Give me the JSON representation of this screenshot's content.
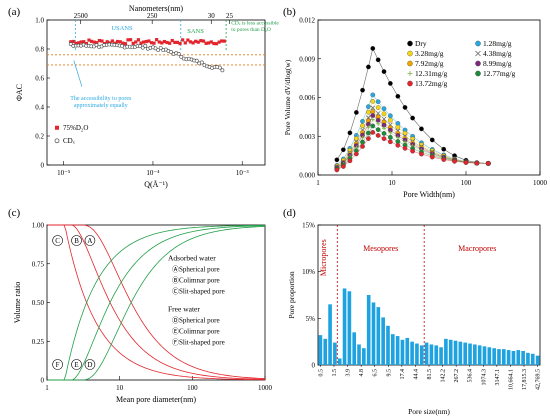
{
  "colors": {
    "red": "#e3262e",
    "green": "#22a04a",
    "cyan": "#29a9e0",
    "blue": "#1ea2e0",
    "darkred": "#c00000"
  },
  "chart_data": [
    {
      "panel": "(a)",
      "type": "scatter",
      "xlabel": "Q(Å⁻¹)",
      "ylabel": "ΦAC",
      "top_xlabel": "Nanometers(nm)",
      "xscale": "log",
      "xlim": [
        6.5e-06,
        0.0018
      ],
      "ylim": [
        0,
        1.0
      ],
      "x_ticks": [
        "10⁻⁵",
        "10⁻⁴",
        "10⁻³"
      ],
      "y_ticks": [
        "0",
        "0.2",
        "0.4",
        "0.6",
        "0.8",
        "1.0"
      ],
      "top_ticks": [
        "2500",
        "250",
        "30",
        "25"
      ],
      "annotations": [
        "USANS",
        "SANS",
        "CDₓ is less accessible to pores than D₂O",
        "The accessibility to pores approximately equally"
      ],
      "legend": [
        "75%D₂O",
        "CDₓ"
      ],
      "series": [
        {
          "name": "75%D₂O",
          "marker": "filled-square",
          "x_range": [
            1.2e-05,
            0.00063
          ],
          "y_mean": 0.85,
          "y_noise": 0.015
        },
        {
          "name": "CDₓ",
          "marker": "open-circle",
          "x": [
            1.2e-05,
            5e-05,
            0.0001,
            0.00016,
            0.00025,
            0.0004,
            0.0006
          ],
          "y": [
            0.825,
            0.82,
            0.81,
            0.78,
            0.73,
            0.69,
            0.66
          ]
        }
      ],
      "reference_lines": [
        0.76,
        0.69
      ]
    },
    {
      "panel": "(b)",
      "type": "line",
      "xlabel": "Pore Width(nm)",
      "ylabel": "Pore Volume dV/dlog(w)",
      "xscale": "log",
      "xlim": [
        1,
        1000
      ],
      "ylim": [
        0,
        0.012
      ],
      "x_ticks": [
        "1",
        "10",
        "100",
        "1000"
      ],
      "y_ticks": [
        "0.000",
        "0.003",
        "0.006",
        "0.009",
        "0.012"
      ],
      "legend": [
        "Dry",
        "1.28mg/g",
        "3.28mg/g",
        "4.38mg/g",
        "7.92mg/g",
        "8.99mg/g",
        "12.31mg/g",
        "12.77mg/g",
        "13.72mg/g"
      ],
      "peak_x": 5.5,
      "series": [
        {
          "name": "Dry",
          "peak": 0.0098
        },
        {
          "name": "1.28mg/g",
          "peak": 0.0062
        },
        {
          "name": "3.28mg/g",
          "peak": 0.0057
        },
        {
          "name": "4.38mg/g",
          "peak": 0.0052
        },
        {
          "name": "7.92mg/g",
          "peak": 0.0049
        },
        {
          "name": "8.99mg/g",
          "peak": 0.0046
        },
        {
          "name": "12.31mg/g",
          "peak": 0.0043
        },
        {
          "name": "12.77mg/g",
          "peak": 0.0038
        },
        {
          "name": "13.72mg/g",
          "peak": 0.0033
        }
      ],
      "tail_value": 0.0009
    },
    {
      "panel": "(c)",
      "type": "line",
      "xlabel": "Mean pore diameter(nm)",
      "ylabel": "Volume ratio",
      "xscale": "log",
      "xlim": [
        1,
        1000
      ],
      "ylim": [
        0,
        1.0
      ],
      "x_ticks": [
        "1",
        "10",
        "100",
        "1000"
      ],
      "y_ticks": [
        "0",
        "0.25",
        "0.50",
        "0.75",
        "1.00"
      ],
      "legend_groups": [
        {
          "title": "Adsorbed water",
          "items": [
            "ⒶSpherical pore",
            "ⒷColimnar pore",
            "ⒸSlit-shaped pore"
          ]
        },
        {
          "title": "Free water",
          "items": [
            "ⒹSpherical pore",
            "ⒺColimnar pore",
            "ⒻSlit-shaped pore"
          ]
        }
      ],
      "curve_labels": [
        "C",
        "B",
        "A",
        "F",
        "E",
        "D"
      ],
      "series": [
        {
          "name": "Ⓐ",
          "color": "red",
          "x0": 1.95,
          "scale": 1,
          "power": 1,
          "kind": "adsorbed"
        },
        {
          "name": "Ⓑ",
          "color": "red",
          "x0": 2.4,
          "scale": 1,
          "power": 2,
          "kind": "adsorbed"
        },
        {
          "name": "Ⓒ",
          "color": "red",
          "x0": 3.3,
          "scale": 1,
          "power": 3,
          "kind": "adsorbed"
        },
        {
          "name": "Ⓓ",
          "color": "green",
          "x0": 1.95,
          "power": 1,
          "kind": "free"
        },
        {
          "name": "Ⓔ",
          "color": "green",
          "x0": 2.4,
          "power": 2,
          "kind": "free"
        },
        {
          "name": "Ⓕ",
          "color": "green",
          "x0": 3.3,
          "power": 3,
          "kind": "free"
        }
      ]
    },
    {
      "panel": "(d)",
      "type": "bar",
      "xlabel": "Pore size(nm)",
      "ylabel": "Pore proportion",
      "ylim": [
        0,
        0.15
      ],
      "y_ticks": [
        "0",
        "5%",
        "10%",
        "15%"
      ],
      "region_labels": [
        "Micropores",
        "Mesopores",
        "Macropores"
      ],
      "category_ticks": [
        "0.5",
        "1.5",
        "3.9",
        "4.8",
        "6.5",
        "9.5",
        "17.4",
        "44.4",
        "81.5",
        "142.2",
        "267.2",
        "536.4",
        "1074.3",
        "3147.1",
        "10,664.1",
        "17,815.3",
        "42,769.5"
      ],
      "values": [
        0.032,
        0.028,
        0.065,
        0.024,
        0.007,
        0.082,
        0.079,
        0.035,
        0.022,
        0.018,
        0.075,
        0.067,
        0.062,
        0.051,
        0.042,
        0.033,
        0.031,
        0.027,
        0.029,
        0.025,
        0.023,
        0.021,
        0.024,
        0.022,
        0.021,
        0.019,
        0.028,
        0.027,
        0.026,
        0.025,
        0.024,
        0.023,
        0.022,
        0.021,
        0.02,
        0.019,
        0.018,
        0.017,
        0.017,
        0.016,
        0.015,
        0.016,
        0.015,
        0.013,
        0.012,
        0.01
      ],
      "divider_indices": [
        4,
        22
      ]
    }
  ]
}
